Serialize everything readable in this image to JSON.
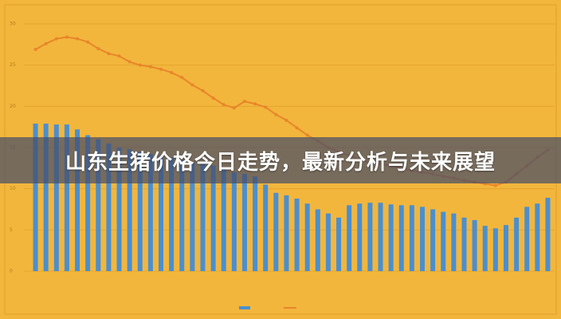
{
  "banner": {
    "title": "山东生猪价格今日走势，最新分析与未来展望"
  },
  "chart_data": {
    "type": "bar",
    "ylim": [
      0,
      30
    ],
    "yticks": [
      0,
      5,
      10,
      15,
      20,
      25,
      30
    ],
    "grid": true,
    "series": [
      {
        "type": "bar",
        "color": "#4a8fd0",
        "values": [
          17.9,
          17.9,
          17.8,
          17.8,
          17.2,
          16.5,
          16.0,
          15.5,
          15.0,
          14.8,
          14.5,
          14.2,
          14.0,
          13.8,
          13.5,
          13.2,
          13.0,
          12.8,
          12.5,
          12.0,
          11.8,
          11.5,
          10.5,
          9.5,
          9.2,
          8.8,
          8.2,
          7.5,
          7.0,
          6.5,
          8.0,
          8.2,
          8.3,
          8.3,
          8.1,
          8.0,
          8.0,
          7.8,
          7.5,
          7.2,
          7.0,
          6.5,
          6.2,
          5.5,
          5.2,
          5.6,
          6.5,
          7.8,
          8.2,
          8.9
        ]
      },
      {
        "type": "line",
        "color": "#e8862a",
        "values": [
          26.9,
          27.6,
          28.2,
          28.4,
          28.2,
          27.8,
          27.0,
          26.4,
          26.1,
          25.4,
          25.0,
          24.8,
          24.5,
          24.1,
          23.5,
          22.6,
          21.9,
          21.0,
          20.2,
          19.8,
          20.6,
          20.3,
          19.9,
          19.0,
          18.3,
          17.4,
          16.5,
          15.8,
          15.0,
          14.5,
          14.0,
          13.5,
          13.2,
          13.0,
          12.8,
          12.5,
          12.2,
          12.0,
          11.8,
          11.5,
          11.3,
          11.0,
          10.8,
          10.6,
          10.4,
          10.8,
          11.8,
          12.8,
          13.8,
          14.7
        ]
      }
    ]
  }
}
